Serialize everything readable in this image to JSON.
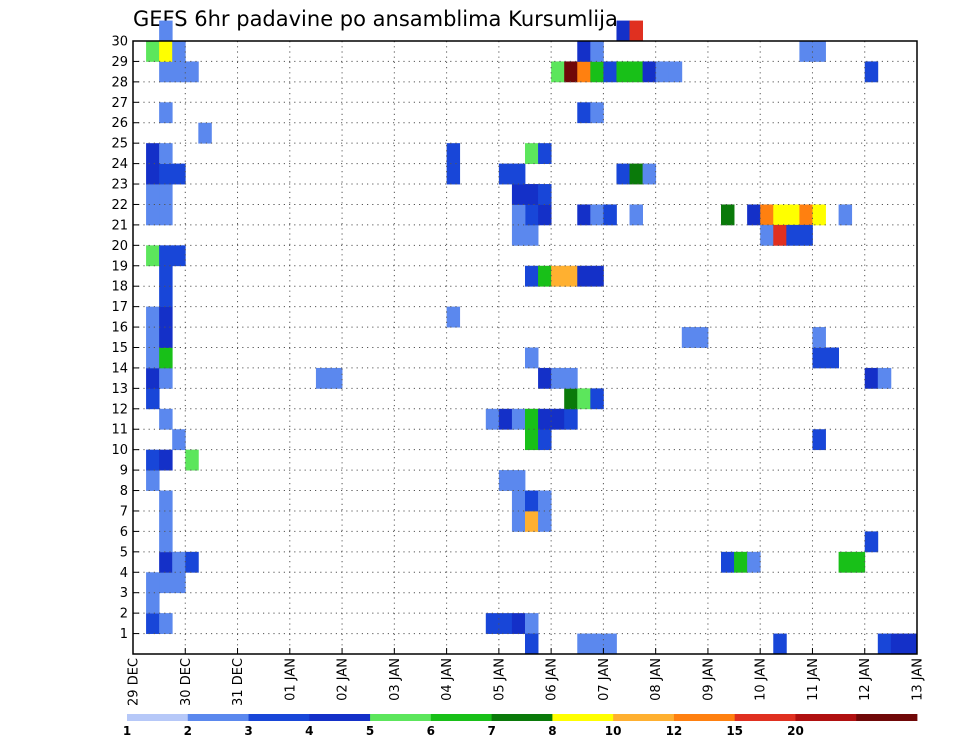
{
  "chart_data": {
    "type": "heatmap",
    "title": "GEFS 6hr padavine po ansamblima Kursumlija",
    "xlabel": "",
    "ylabel": "",
    "x_ticks": [
      "29 DEC",
      "30 DEC",
      "31 DEC",
      "01 JAN",
      "02 JAN",
      "03 JAN",
      "04 JAN",
      "05 JAN",
      "06 JAN",
      "07 JAN",
      "08 JAN",
      "09 JAN",
      "10 JAN",
      "11 JAN",
      "12 JAN",
      "13 JAN"
    ],
    "y_ticks": [
      1,
      2,
      3,
      4,
      5,
      6,
      7,
      8,
      9,
      10,
      11,
      12,
      13,
      14,
      15,
      16,
      17,
      18,
      19,
      20,
      21,
      22,
      23,
      24,
      25,
      26,
      27,
      28,
      29,
      30
    ],
    "xlim": [
      0,
      60
    ],
    "ylim": [
      0,
      30
    ],
    "grid": true,
    "legend_position": "bottom",
    "colorbar": {
      "labels": [
        "1",
        "2",
        "3",
        "4",
        "5",
        "6",
        "7",
        "8",
        "10",
        "12",
        "15",
        "20"
      ],
      "colors": [
        "#b6c8f8",
        "#5b88ee",
        "#1846d8",
        "#1430c8",
        "#5ce65c",
        "#18c018",
        "#0a7a0a",
        "#ffff00",
        "#ffb030",
        "#ff8010",
        "#e03020",
        "#b01010",
        "#700808"
      ]
    },
    "cells": [
      {
        "t": 1,
        "m": 1,
        "c": 2
      },
      {
        "t": 2,
        "m": 1,
        "c": 1
      },
      {
        "t": 1,
        "m": 2,
        "c": 1
      },
      {
        "t": 1,
        "m": 3,
        "c": 1
      },
      {
        "t": 2,
        "m": 3,
        "c": 1
      },
      {
        "t": 3,
        "m": 3,
        "c": 1
      },
      {
        "t": 2,
        "m": 4,
        "c": 3
      },
      {
        "t": 3,
        "m": 4,
        "c": 1
      },
      {
        "t": 4,
        "m": 4,
        "c": 2
      },
      {
        "t": 2,
        "m": 5,
        "c": 1
      },
      {
        "t": 2,
        "m": 6,
        "c": 1
      },
      {
        "t": 2,
        "m": 7,
        "c": 1
      },
      {
        "t": 1,
        "m": 8,
        "c": 1
      },
      {
        "t": 1,
        "m": 9,
        "c": 2
      },
      {
        "t": 2,
        "m": 9,
        "c": 3
      },
      {
        "t": 4,
        "m": 9,
        "c": 4
      },
      {
        "t": 3,
        "m": 10,
        "c": 1
      },
      {
        "t": 2,
        "m": 11,
        "c": 1
      },
      {
        "t": 1,
        "m": 12,
        "c": 2
      },
      {
        "t": 1,
        "m": 13,
        "c": 3
      },
      {
        "t": 2,
        "m": 13,
        "c": 1
      },
      {
        "t": 1,
        "m": 14,
        "c": 1
      },
      {
        "t": 2,
        "m": 14,
        "c": 5
      },
      {
        "t": 1,
        "m": 15,
        "c": 1
      },
      {
        "t": 2,
        "m": 15,
        "c": 3
      },
      {
        "t": 1,
        "m": 16,
        "c": 1
      },
      {
        "t": 2,
        "m": 16,
        "c": 3
      },
      {
        "t": 2,
        "m": 17,
        "c": 2
      },
      {
        "t": 2,
        "m": 18,
        "c": 2
      },
      {
        "t": 1,
        "m": 19,
        "c": 4
      },
      {
        "t": 2,
        "m": 19,
        "c": 2
      },
      {
        "t": 3,
        "m": 19,
        "c": 2
      },
      {
        "t": 1,
        "m": 21,
        "c": 1
      },
      {
        "t": 2,
        "m": 21,
        "c": 1
      },
      {
        "t": 1,
        "m": 22,
        "c": 1
      },
      {
        "t": 2,
        "m": 22,
        "c": 1
      },
      {
        "t": 1,
        "m": 23,
        "c": 3
      },
      {
        "t": 2,
        "m": 23,
        "c": 2
      },
      {
        "t": 3,
        "m": 23,
        "c": 2
      },
      {
        "t": 1,
        "m": 24,
        "c": 3
      },
      {
        "t": 2,
        "m": 24,
        "c": 1
      },
      {
        "t": 2,
        "m": 26,
        "c": 1
      },
      {
        "t": 2,
        "m": 28,
        "c": 1
      },
      {
        "t": 3,
        "m": 28,
        "c": 1
      },
      {
        "t": 4,
        "m": 28,
        "c": 1
      },
      {
        "t": 1,
        "m": 29,
        "c": 4
      },
      {
        "t": 2,
        "m": 29,
        "c": 7
      },
      {
        "t": 3,
        "m": 29,
        "c": 1
      },
      {
        "t": 2,
        "m": 30,
        "c": 1
      },
      {
        "t": 5,
        "m": 25,
        "c": 1
      },
      {
        "t": 14,
        "m": 13,
        "c": 1
      },
      {
        "t": 15,
        "m": 13,
        "c": 1
      },
      {
        "t": 24,
        "m": 16,
        "c": 1
      },
      {
        "t": 24,
        "m": 23,
        "c": 2
      },
      {
        "t": 24,
        "m": 24,
        "c": 2
      },
      {
        "t": 27,
        "m": 1,
        "c": 2
      },
      {
        "t": 28,
        "m": 1,
        "c": 2
      },
      {
        "t": 29,
        "m": 1,
        "c": 3
      },
      {
        "t": 30,
        "m": 1,
        "c": 1
      },
      {
        "t": 30,
        "m": 0,
        "c": 2
      },
      {
        "t": 29,
        "m": 6,
        "c": 1
      },
      {
        "t": 30,
        "m": 6,
        "c": 8
      },
      {
        "t": 31,
        "m": 6,
        "c": 1
      },
      {
        "t": 29,
        "m": 7,
        "c": 1
      },
      {
        "t": 30,
        "m": 7,
        "c": 2
      },
      {
        "t": 31,
        "m": 7,
        "c": 1
      },
      {
        "t": 28,
        "m": 8,
        "c": 1
      },
      {
        "t": 29,
        "m": 8,
        "c": 1
      },
      {
        "t": 30,
        "m": 10,
        "c": 5
      },
      {
        "t": 31,
        "m": 10,
        "c": 2
      },
      {
        "t": 27,
        "m": 11,
        "c": 1
      },
      {
        "t": 28,
        "m": 11,
        "c": 3
      },
      {
        "t": 29,
        "m": 11,
        "c": 1
      },
      {
        "t": 30,
        "m": 11,
        "c": 5
      },
      {
        "t": 31,
        "m": 11,
        "c": 3
      },
      {
        "t": 32,
        "m": 11,
        "c": 3
      },
      {
        "t": 33,
        "m": 11,
        "c": 2
      },
      {
        "t": 33,
        "m": 12,
        "c": 6
      },
      {
        "t": 34,
        "m": 12,
        "c": 4
      },
      {
        "t": 35,
        "m": 12,
        "c": 2
      },
      {
        "t": 30,
        "m": 14,
        "c": 1
      },
      {
        "t": 31,
        "m": 13,
        "c": 3
      },
      {
        "t": 32,
        "m": 13,
        "c": 1
      },
      {
        "t": 33,
        "m": 13,
        "c": 1
      },
      {
        "t": 30,
        "m": 18,
        "c": 2
      },
      {
        "t": 31,
        "m": 18,
        "c": 5
      },
      {
        "t": 32,
        "m": 18,
        "c": 8
      },
      {
        "t": 33,
        "m": 18,
        "c": 8
      },
      {
        "t": 34,
        "m": 18,
        "c": 3
      },
      {
        "t": 35,
        "m": 18,
        "c": 3
      },
      {
        "t": 29,
        "m": 20,
        "c": 1
      },
      {
        "t": 30,
        "m": 20,
        "c": 1
      },
      {
        "t": 30,
        "m": 21,
        "c": 2
      },
      {
        "t": 31,
        "m": 21,
        "c": 3
      },
      {
        "t": 29,
        "m": 21,
        "c": 1
      },
      {
        "t": 29,
        "m": 22,
        "c": 3
      },
      {
        "t": 30,
        "m": 22,
        "c": 3
      },
      {
        "t": 31,
        "m": 22,
        "c": 2
      },
      {
        "t": 28,
        "m": 23,
        "c": 2
      },
      {
        "t": 29,
        "m": 23,
        "c": 2
      },
      {
        "t": 30,
        "m": 24,
        "c": 4
      },
      {
        "t": 31,
        "m": 24,
        "c": 2
      },
      {
        "t": 34,
        "m": 21,
        "c": 3
      },
      {
        "t": 35,
        "m": 21,
        "c": 1
      },
      {
        "t": 36,
        "m": 21,
        "c": 2
      },
      {
        "t": 38,
        "m": 21,
        "c": 1
      },
      {
        "t": 37,
        "m": 23,
        "c": 2
      },
      {
        "t": 38,
        "m": 23,
        "c": 6
      },
      {
        "t": 39,
        "m": 23,
        "c": 1
      },
      {
        "t": 34,
        "m": 26,
        "c": 2
      },
      {
        "t": 35,
        "m": 26,
        "c": 1
      },
      {
        "t": 32,
        "m": 28,
        "c": 4
      },
      {
        "t": 33,
        "m": 28,
        "c": 12
      },
      {
        "t": 34,
        "m": 28,
        "c": 9
      },
      {
        "t": 35,
        "m": 28,
        "c": 5
      },
      {
        "t": 36,
        "m": 28,
        "c": 2
      },
      {
        "t": 37,
        "m": 28,
        "c": 5
      },
      {
        "t": 38,
        "m": 28,
        "c": 5
      },
      {
        "t": 39,
        "m": 28,
        "c": 3
      },
      {
        "t": 40,
        "m": 28,
        "c": 1
      },
      {
        "t": 41,
        "m": 28,
        "c": 1
      },
      {
        "t": 34,
        "m": 29,
        "c": 3
      },
      {
        "t": 35,
        "m": 29,
        "c": 1
      },
      {
        "t": 37,
        "m": 30,
        "c": 3
      },
      {
        "t": 38,
        "m": 30,
        "c": 10
      },
      {
        "t": 34,
        "m": 0,
        "c": 1
      },
      {
        "t": 35,
        "m": 0,
        "c": 1
      },
      {
        "t": 36,
        "m": 0,
        "c": 1
      },
      {
        "t": 42,
        "m": 15,
        "c": 1
      },
      {
        "t": 43,
        "m": 15,
        "c": 1
      },
      {
        "t": 45,
        "m": 4,
        "c": 2
      },
      {
        "t": 46,
        "m": 4,
        "c": 5
      },
      {
        "t": 47,
        "m": 4,
        "c": 1
      },
      {
        "t": 45,
        "m": 21,
        "c": 6
      },
      {
        "t": 47,
        "m": 21,
        "c": 3
      },
      {
        "t": 48,
        "m": 21,
        "c": 9
      },
      {
        "t": 49,
        "m": 21,
        "c": 7
      },
      {
        "t": 50,
        "m": 21,
        "c": 7
      },
      {
        "t": 51,
        "m": 21,
        "c": 9
      },
      {
        "t": 52,
        "m": 21,
        "c": 7
      },
      {
        "t": 54,
        "m": 21,
        "c": 1
      },
      {
        "t": 48,
        "m": 20,
        "c": 1
      },
      {
        "t": 49,
        "m": 20,
        "c": 10
      },
      {
        "t": 50,
        "m": 20,
        "c": 2
      },
      {
        "t": 51,
        "m": 20,
        "c": 2
      },
      {
        "t": 49,
        "m": 0,
        "c": 2
      },
      {
        "t": 52,
        "m": 10,
        "c": 2
      },
      {
        "t": 52,
        "m": 14,
        "c": 2
      },
      {
        "t": 53,
        "m": 14,
        "c": 2
      },
      {
        "t": 52,
        "m": 15,
        "c": 1
      },
      {
        "t": 51,
        "m": 29,
        "c": 1
      },
      {
        "t": 52,
        "m": 29,
        "c": 1
      },
      {
        "t": 54,
        "m": 4,
        "c": 5
      },
      {
        "t": 55,
        "m": 4,
        "c": 5
      },
      {
        "t": 56,
        "m": 5,
        "c": 2
      },
      {
        "t": 56,
        "m": 13,
        "c": 3
      },
      {
        "t": 57,
        "m": 13,
        "c": 1
      },
      {
        "t": 56,
        "m": 28,
        "c": 2
      },
      {
        "t": 57,
        "m": 0,
        "c": 2
      },
      {
        "t": 58,
        "m": 0,
        "c": 3
      },
      {
        "t": 59,
        "m": 0,
        "c": 3
      }
    ]
  }
}
